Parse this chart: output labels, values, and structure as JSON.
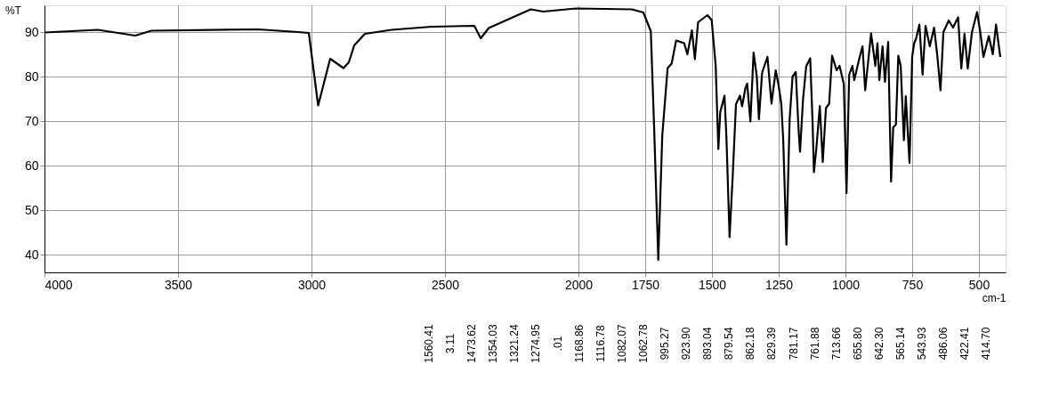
{
  "chart_data": {
    "type": "line",
    "xlabel": "cm-1",
    "ylabel": "%T",
    "x": [
      4000,
      3800,
      3660,
      3600,
      3200,
      3050,
      3010,
      2975,
      2930,
      2880,
      2860,
      2840,
      2800,
      2700,
      2550,
      2390,
      2366,
      2336,
      2179,
      2132,
      2009,
      1800,
      1757,
      1729,
      1717,
      1701,
      1686,
      1666,
      1651,
      1634,
      1604,
      1592,
      1575,
      1564,
      1552,
      1517,
      1501,
      1486,
      1476,
      1469,
      1453,
      1446,
      1434,
      1422,
      1410,
      1395,
      1387,
      1375,
      1368,
      1356,
      1344,
      1332,
      1324,
      1312,
      1292,
      1277,
      1261,
      1250,
      1240,
      1233,
      1221,
      1209,
      1198,
      1186,
      1175,
      1170,
      1159,
      1147,
      1132,
      1123,
      1118,
      1109,
      1096,
      1085,
      1073,
      1061,
      1050,
      1033,
      1022,
      1006,
      996,
      986,
      974,
      967,
      947,
      936,
      926,
      904,
      888,
      880,
      873,
      861,
      852,
      840,
      829,
      821,
      811,
      802,
      793,
      781,
      774,
      760,
      750,
      743,
      735,
      723,
      711,
      700,
      684,
      668,
      656,
      644,
      633,
      613,
      597,
      578,
      566,
      554,
      542,
      526,
      507,
      495,
      483,
      463,
      448,
      436,
      420
    ],
    "series": [
      {
        "color": "#000000",
        "values": [
          89.9,
          90.5,
          89.2,
          90.3,
          90.6,
          90,
          89.8,
          73.5,
          84,
          81.9,
          83.2,
          87,
          89.6,
          90.5,
          91.2,
          91.4,
          88.6,
          90.9,
          95.1,
          94.6,
          95.3,
          95.1,
          94.4,
          90.2,
          69.4,
          38.8,
          66.8,
          81.9,
          82.9,
          88.1,
          87.5,
          85,
          90.4,
          83.9,
          92.2,
          93.8,
          92.7,
          82.4,
          63.7,
          72,
          75.7,
          66.8,
          43.9,
          57.9,
          73.8,
          75.7,
          73.3,
          77.3,
          78.4,
          69.9,
          85.4,
          80,
          70.4,
          80.9,
          84.4,
          73.9,
          81.4,
          77.9,
          73.7,
          65.7,
          42.2,
          70.4,
          80,
          81,
          67.5,
          63.1,
          74.7,
          82.3,
          84.1,
          69.6,
          58.5,
          63.8,
          73.4,
          60.8,
          72.9,
          73.9,
          84.7,
          81.4,
          82.4,
          78.3,
          53.8,
          80.4,
          82.4,
          79.2,
          84.3,
          86.8,
          76.9,
          89.7,
          82.4,
          87.5,
          79.2,
          86.8,
          78.8,
          87.8,
          56.4,
          68.6,
          69.2,
          84.7,
          82.4,
          65.7,
          75.6,
          60.6,
          84.4,
          87.4,
          88.6,
          91.7,
          80.4,
          91.4,
          86.8,
          91,
          84.8,
          76.9,
          90,
          92.6,
          91,
          93.3,
          81.8,
          89.6,
          81.8,
          90,
          94.5,
          90,
          84.4,
          89.1,
          85,
          91.7,
          84.4
        ]
      }
    ],
    "xlim": [
      4000,
      400
    ],
    "ylim": [
      36,
      96
    ],
    "xticks": [
      4000,
      3500,
      3000,
      2500,
      2000,
      1750,
      1500,
      1250,
      1000,
      750,
      500
    ],
    "yticks": [
      40,
      50,
      60,
      70,
      80,
      90
    ],
    "grid": true,
    "marker": "none",
    "line_style": "solid",
    "annotations": [
      "1560.41",
      "3.11",
      "1473.62",
      "1354.03",
      "1321.24",
      "1274.95",
      ".01",
      "1168.86",
      "1116.78",
      "1082.07",
      "1062.78",
      "995.27",
      "923.90",
      "893.04",
      "879.54",
      "862.18",
      "829.39",
      "781.17",
      "761.88",
      "713.66",
      "655.80",
      "642.30",
      "565.14",
      "543.93",
      "486.06",
      "422.41",
      "414.70"
    ]
  }
}
